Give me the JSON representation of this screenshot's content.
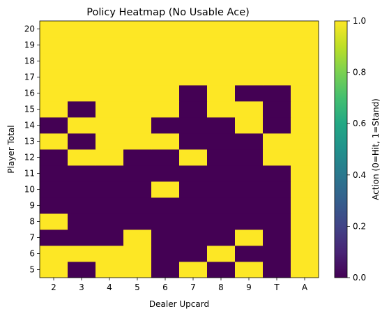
{
  "chart_data": {
    "type": "heatmap",
    "title": "Policy Heatmap (No Usable Ace)",
    "xlabel": "Dealer Upcard",
    "ylabel": "Player Total",
    "x_categories": [
      "2",
      "3",
      "4",
      "5",
      "6",
      "7",
      "8",
      "9",
      "T",
      "A"
    ],
    "y_categories": [
      "5",
      "6",
      "7",
      "8",
      "9",
      "10",
      "11",
      "12",
      "13",
      "14",
      "15",
      "16",
      "17",
      "18",
      "19",
      "20"
    ],
    "values": [
      [
        1,
        0,
        1,
        1,
        0,
        1,
        0,
        1,
        0,
        1
      ],
      [
        1,
        1,
        1,
        1,
        0,
        0,
        1,
        0,
        0,
        1
      ],
      [
        0,
        0,
        0,
        1,
        0,
        0,
        0,
        1,
        0,
        1
      ],
      [
        1,
        0,
        0,
        0,
        0,
        0,
        0,
        0,
        0,
        1
      ],
      [
        0,
        0,
        0,
        0,
        0,
        0,
        0,
        0,
        0,
        1
      ],
      [
        0,
        0,
        0,
        0,
        1,
        0,
        0,
        0,
        0,
        1
      ],
      [
        0,
        0,
        0,
        0,
        0,
        0,
        0,
        0,
        0,
        1
      ],
      [
        0,
        1,
        1,
        0,
        0,
        1,
        0,
        0,
        1,
        1
      ],
      [
        1,
        0,
        1,
        1,
        1,
        0,
        0,
        0,
        1,
        1
      ],
      [
        0,
        1,
        1,
        1,
        0,
        0,
        0,
        1,
        0,
        1
      ],
      [
        1,
        0,
        1,
        1,
        1,
        0,
        1,
        1,
        0,
        1
      ],
      [
        1,
        1,
        1,
        1,
        1,
        0,
        1,
        0,
        0,
        1
      ],
      [
        1,
        1,
        1,
        1,
        1,
        1,
        1,
        1,
        1,
        1
      ],
      [
        1,
        1,
        1,
        1,
        1,
        1,
        1,
        1,
        1,
        1
      ],
      [
        1,
        1,
        1,
        1,
        1,
        1,
        1,
        1,
        1,
        1
      ],
      [
        1,
        1,
        1,
        1,
        1,
        1,
        1,
        1,
        1,
        1
      ]
    ],
    "colormap": "viridis",
    "colors": {
      "low": "#440154",
      "high": "#fde725"
    },
    "colorbar": {
      "label": "Action (0=Hit, 1=Stand)",
      "range": [
        0.0,
        1.0
      ],
      "ticks": [
        "0.0",
        "0.2",
        "0.4",
        "0.6",
        "0.8",
        "1.0"
      ]
    },
    "grid": false
  }
}
